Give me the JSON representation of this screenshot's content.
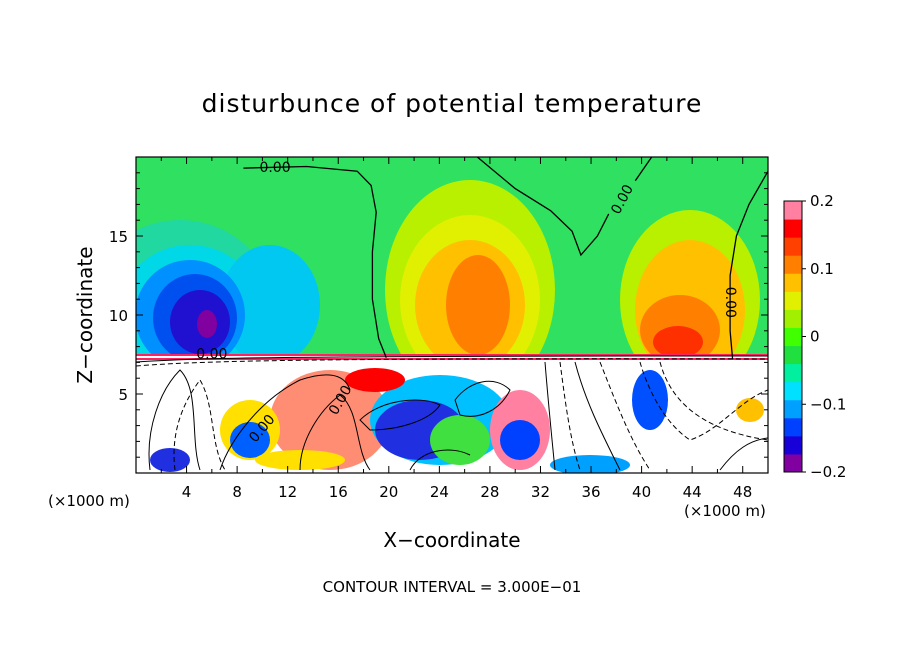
{
  "chart_data": {
    "type": "heatmap",
    "title": "disturbunce of potential temperature",
    "xlabel": "X−coordinate",
    "ylabel": "Z−coordinate",
    "x_unit": "(×1000 m)",
    "footer": "CONTOUR INTERVAL = 3.000E−01",
    "xlim": [
      0,
      50
    ],
    "ylim": [
      0,
      20
    ],
    "x_ticks": [
      4,
      8,
      12,
      16,
      20,
      24,
      28,
      32,
      36,
      40,
      44,
      48
    ],
    "y_ticks": [
      5,
      10,
      15
    ],
    "colorbar": {
      "range": [
        -0.2,
        0.2
      ],
      "tick_values": [
        0.2,
        0.1,
        0,
        -0.1,
        -0.2
      ],
      "tick_labels": [
        "0.2",
        "0.1",
        "0",
        "−0.1",
        "−0.2"
      ],
      "colors": [
        "#8000a0",
        "#1800d8",
        "#0040ff",
        "#00a0ff",
        "#00e0ff",
        "#00f0a0",
        "#20e040",
        "#40ff00",
        "#a0f000",
        "#e0f000",
        "#ffc000",
        "#ff8000",
        "#ff4000",
        "#ff0000",
        "#ff80a0"
      ]
    },
    "contour_labels": [
      {
        "text": "0.00",
        "x": 11.0,
        "y": 19.3,
        "angle": 0
      },
      {
        "text": "0.00",
        "x": 38.5,
        "y": 17.3,
        "angle": -62
      },
      {
        "text": "0.00",
        "x": 47.0,
        "y": 10.8,
        "angle": 90
      },
      {
        "text": "0.00",
        "x": 6.0,
        "y": 7.5,
        "angle": 0
      },
      {
        "text": "0.00",
        "x": 16.2,
        "y": 4.6,
        "angle": -60
      },
      {
        "text": "0.00",
        "x": 10.0,
        "y": 2.8,
        "angle": -50
      }
    ],
    "zero_contour_upper": [
      [
        [
          8.5,
          19.3
        ],
        [
          13.5,
          19.4
        ],
        [
          17.5,
          19.1
        ],
        [
          18.6,
          18.2
        ],
        [
          19.0,
          16.5
        ],
        [
          18.7,
          14.0
        ],
        [
          18.7,
          11.0
        ],
        [
          19.2,
          8.5
        ],
        [
          19.8,
          7.3
        ]
      ],
      [
        [
          27.0,
          20.0
        ],
        [
          30.0,
          18.0
        ],
        [
          32.8,
          16.6
        ],
        [
          34.5,
          15.3
        ],
        [
          35.2,
          13.8
        ],
        [
          36.5,
          15.0
        ],
        [
          37.4,
          16.4
        ]
      ],
      [
        [
          39.5,
          18.5
        ],
        [
          40.8,
          20.0
        ]
      ],
      [
        [
          50.0,
          19.1
        ],
        [
          48.5,
          17.0
        ],
        [
          47.5,
          15.0
        ],
        [
          47.0,
          12.5
        ],
        [
          47.0,
          9.0
        ],
        [
          47.2,
          7.2
        ]
      ]
    ]
  }
}
